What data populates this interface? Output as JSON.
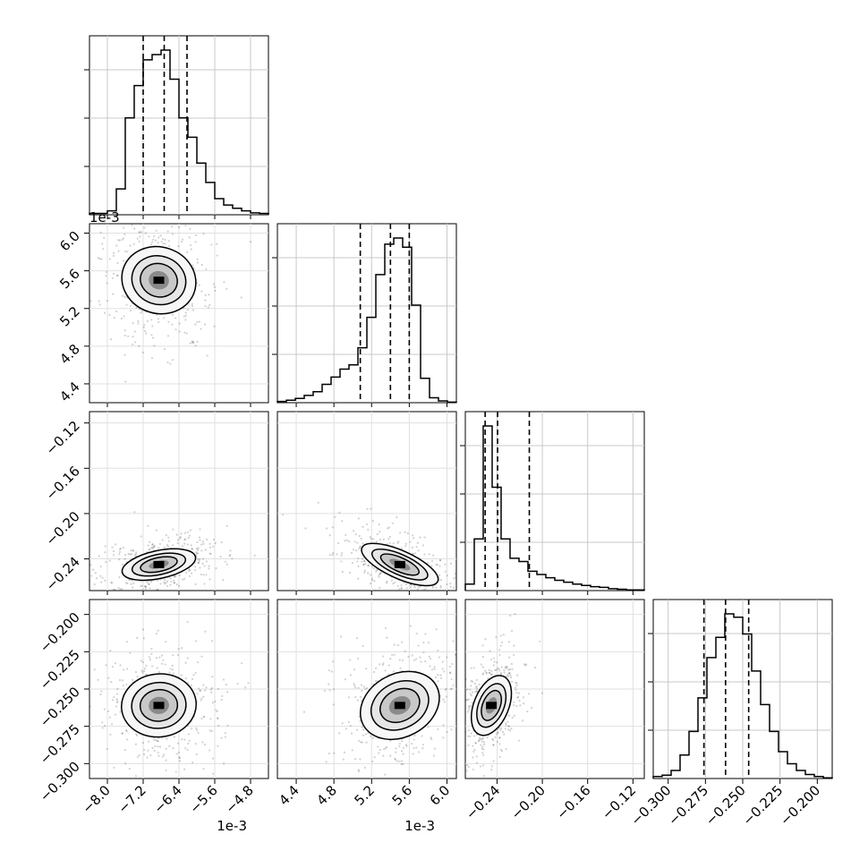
{
  "chart_data": {
    "type": "corner",
    "description": "Corner plot of 4 parameters: 1-D marginal histograms on the diagonal with dashed quantile lines, 2-D density contours with scatter points below the diagonal.",
    "params": [
      {
        "offset_label": "1e-3",
        "range": [
          -8.4,
          -4.4
        ],
        "ticks": [
          -8.0,
          -7.2,
          -6.4,
          -5.6,
          -4.8
        ],
        "tick_labels": [
          "−8.0",
          "−7.2",
          "−6.4",
          "−5.6",
          "−4.8"
        ],
        "quantiles": [
          -7.2,
          -6.73,
          -6.22
        ],
        "center": -6.85,
        "spread": 0.38
      },
      {
        "offset_label": "1e-3",
        "range": [
          4.2,
          6.1
        ],
        "ticks": [
          4.4,
          4.8,
          5.2,
          5.6,
          6.0
        ],
        "tick_labels": [
          "4.4",
          "4.8",
          "5.2",
          "5.6",
          "6.0"
        ],
        "quantiles": [
          5.08,
          5.4,
          5.6
        ],
        "center": 5.5,
        "spread": 0.2
      },
      {
        "offset_label": "",
        "range": [
          -0.268,
          -0.11
        ],
        "ticks": [
          -0.24,
          -0.2,
          -0.16,
          -0.12
        ],
        "tick_labels": [
          "−0.24",
          "−0.20",
          "−0.16",
          "−0.12"
        ],
        "quantiles": [
          -0.2505,
          -0.2395,
          -0.2115
        ],
        "center": -0.245,
        "spread": 0.007
      },
      {
        "offset_label": "",
        "range": [
          -0.31,
          -0.19
        ],
        "ticks": [
          -0.3,
          -0.275,
          -0.25,
          -0.225,
          -0.2
        ],
        "tick_labels": [
          "−0.300",
          "−0.275",
          "−0.250",
          "−0.225",
          "−0.200"
        ],
        "quantiles": [
          -0.276,
          -0.2615,
          -0.246
        ],
        "center": -0.261,
        "spread": 0.012
      }
    ],
    "marginals": [
      [
        2,
        2,
        6,
        40,
        150,
        200,
        240,
        248,
        255,
        210,
        150,
        120,
        80,
        50,
        25,
        15,
        10,
        6,
        3,
        2
      ],
      [
        2,
        4,
        7,
        12,
        18,
        30,
        42,
        55,
        62,
        90,
        140,
        210,
        260,
        270,
        255,
        160,
        40,
        8,
        3,
        1
      ],
      [
        10,
        80,
        255,
        160,
        80,
        50,
        45,
        30,
        25,
        20,
        16,
        13,
        10,
        8,
        6,
        5,
        3,
        2,
        1,
        1
      ],
      [
        3,
        5,
        12,
        35,
        70,
        120,
        180,
        210,
        245,
        240,
        215,
        160,
        110,
        70,
        40,
        22,
        12,
        6,
        3,
        1
      ]
    ]
  }
}
